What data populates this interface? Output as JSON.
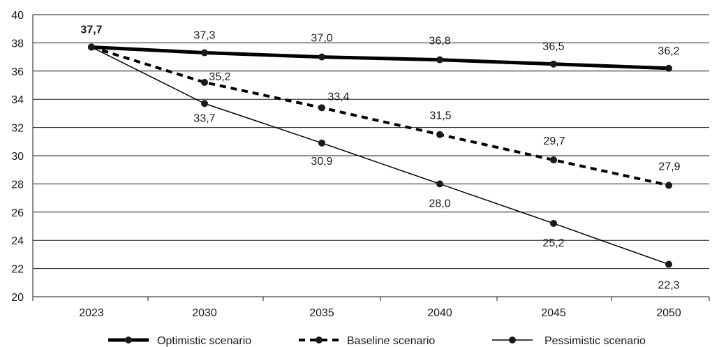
{
  "chart_data": {
    "type": "line",
    "title": "",
    "xlabel": "",
    "ylabel": "",
    "categories": [
      "2023",
      "2030",
      "2035",
      "2040",
      "2045",
      "2050"
    ],
    "ylim": [
      20,
      40
    ],
    "yticks": [
      "20",
      "22",
      "24",
      "26",
      "28",
      "30",
      "32",
      "34",
      "36",
      "38",
      "40"
    ],
    "grid": "horizontal",
    "legend_position": "bottom",
    "series": [
      {
        "name": "Optimistic scenario",
        "style": "thick-solid",
        "values": [
          37.7,
          37.3,
          37.0,
          36.8,
          36.5,
          36.2
        ],
        "labels": [
          "37,7",
          "37,3",
          "37,0",
          "36,8",
          "36,5",
          "36,2"
        ]
      },
      {
        "name": "Baseline scenario",
        "style": "dashed",
        "values": [
          37.7,
          35.2,
          33.4,
          31.5,
          29.7,
          27.9
        ],
        "labels": [
          "",
          "35,2",
          "33,4",
          "31,5",
          "29,7",
          "27,9"
        ]
      },
      {
        "name": "Pessimistic scenario",
        "style": "thin-solid",
        "values": [
          37.7,
          33.7,
          30.9,
          28.0,
          25.2,
          22.3
        ],
        "labels": [
          "",
          "33,7",
          "30,9",
          "28,0",
          "25,2",
          "22,3"
        ]
      }
    ],
    "colors": {
      "line": "#000000",
      "grid": "#1a1a1a",
      "marker": "#1a1a1a"
    }
  }
}
